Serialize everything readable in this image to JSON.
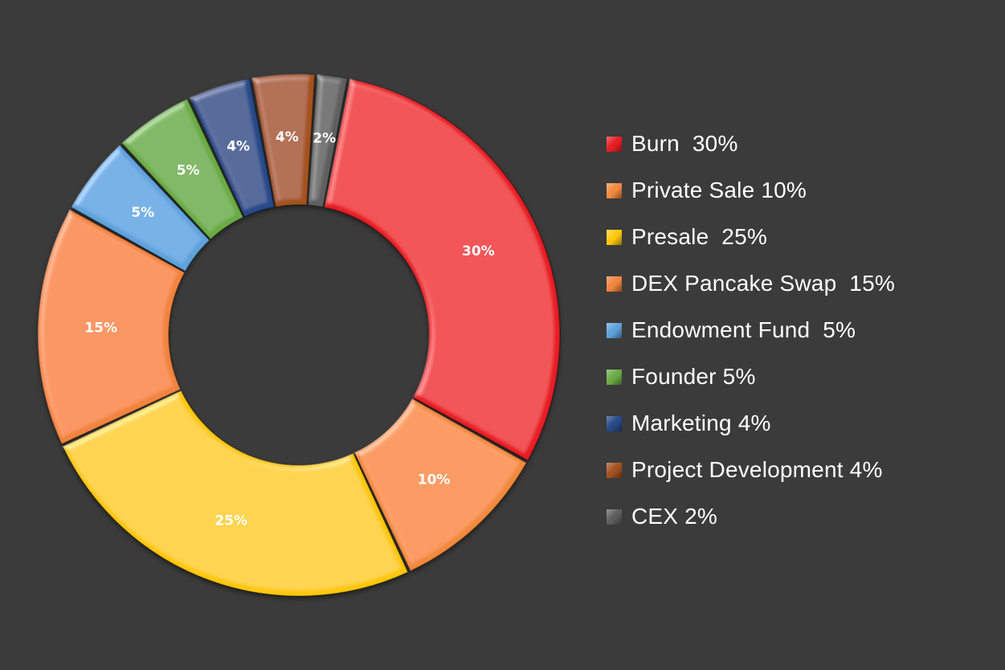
{
  "chart_data": {
    "type": "pie",
    "donut": true,
    "title": "",
    "legend_position": "right",
    "slices": [
      {
        "name": "Burn",
        "value": 30,
        "label": "30%",
        "legend": "Burn  30%",
        "color": "#e81e25"
      },
      {
        "name": "Private Sale",
        "value": 10,
        "label": "10%",
        "legend": "Private Sale 10%",
        "color": "#f28a3e"
      },
      {
        "name": "Presale",
        "value": 25,
        "label": "25%",
        "legend": "Presale  25%",
        "color": "#ffc80a"
      },
      {
        "name": "DEX Pancake Swap",
        "value": 15,
        "label": "15%",
        "legend": "DEX Pancake Swap  15%",
        "color": "#f2843e"
      },
      {
        "name": "Endowment Fund",
        "value": 5,
        "label": "5%",
        "legend": "Endowment Fund  5%",
        "color": "#5ea2dc"
      },
      {
        "name": "Founder",
        "value": 5,
        "label": "5%",
        "legend": "Founder 5%",
        "color": "#6aab44"
      },
      {
        "name": "Marketing",
        "value": 4,
        "label": "4%",
        "legend": "Marketing 4%",
        "color": "#264a8a"
      },
      {
        "name": "Project Development",
        "value": 4,
        "label": "4%",
        "legend": "Project Development 4%",
        "color": "#a4521e"
      },
      {
        "name": "CEX",
        "value": 2,
        "label": "2%",
        "legend": "CEX 2%",
        "color": "#5e5e5e"
      }
    ]
  }
}
